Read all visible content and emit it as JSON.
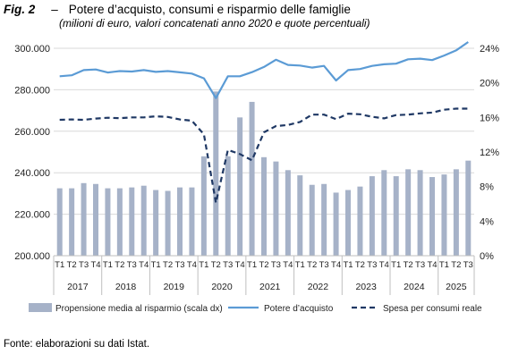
{
  "header": {
    "fig_label": "Fig. 2",
    "separator": "–",
    "title": "Potere d’acquisto, consumi e risparmio delle famiglie",
    "subtitle": "(milioni di euro, valori concatenati anno 2020 e quote percentuali)"
  },
  "source": "Fonte: elaborazioni su dati Istat.",
  "colors": {
    "bar": "#a6b2c8",
    "potere": "#5b9bd5",
    "spesa": "#1f3864",
    "grid": "#d9d9d9"
  },
  "chart_data": {
    "type": "bar",
    "years": [
      "2017",
      "2018",
      "2019",
      "2020",
      "2021",
      "2022",
      "2023",
      "2024",
      "2025"
    ],
    "quarters": [
      "T1",
      "T2",
      "T3",
      "T4"
    ],
    "ylim_left": [
      200000,
      300000
    ],
    "yticks_left": [
      "200.000",
      "220.000",
      "240.000",
      "260.000",
      "280.000",
      "300.000"
    ],
    "ylim_right": [
      0,
      24
    ],
    "yticks_right": [
      "0%",
      "4%",
      "8%",
      "12%",
      "16%",
      "20%",
      "24%"
    ],
    "grid": "horizontal",
    "legend_position": "bottom",
    "series": [
      {
        "name": "Propensione media al risparmio (scala dx)",
        "kind": "bar",
        "axis": "right",
        "values": [
          7.8,
          7.8,
          8.4,
          8.3,
          7.8,
          7.8,
          7.9,
          8.1,
          7.6,
          7.5,
          7.9,
          7.9,
          11.5,
          19.0,
          11.5,
          16.0,
          17.8,
          11.4,
          10.9,
          9.9,
          9.3,
          8.2,
          8.3,
          7.3,
          7.6,
          8.0,
          9.2,
          9.9,
          9.2,
          10.0,
          9.9,
          9.1,
          9.4,
          10.0,
          11.0
        ]
      },
      {
        "name": "Potere d’acquisto",
        "kind": "line",
        "axis": "left",
        "values": [
          286500,
          287000,
          289500,
          289800,
          288300,
          289000,
          288800,
          289500,
          288600,
          289000,
          288400,
          287800,
          285500,
          276000,
          286500,
          286500,
          288500,
          291000,
          294500,
          292000,
          291700,
          290700,
          291500,
          284500,
          289500,
          290000,
          291500,
          292300,
          292600,
          294700,
          295000,
          294300,
          296500,
          299000,
          303000
        ]
      },
      {
        "name": "Spesa per consumi reale",
        "kind": "dashed-line",
        "axis": "left",
        "values": [
          265500,
          265700,
          265500,
          266100,
          266500,
          266300,
          266700,
          266700,
          267200,
          266900,
          265700,
          265100,
          258500,
          225500,
          251000,
          249000,
          246000,
          259500,
          262500,
          263000,
          264500,
          268000,
          268000,
          265800,
          268500,
          268200,
          267000,
          266200,
          267800,
          268000,
          268600,
          269000,
          270400,
          270900,
          270900
        ]
      }
    ]
  }
}
